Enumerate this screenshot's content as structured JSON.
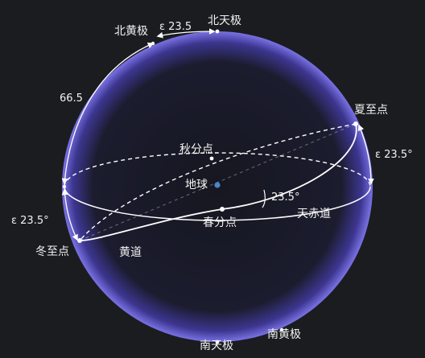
{
  "labels": {
    "north_celestial_pole": "北天极",
    "south_celestial_pole": "南天极",
    "north_ecliptic_pole": "北黄极",
    "south_ecliptic_pole": "南黄极",
    "earth": "地球",
    "summer_solstice": "夏至点",
    "winter_solstice": "冬至点",
    "spring_equinox": "春分点",
    "autumn_equinox": "秋分点",
    "ecliptic": "黄道",
    "celestial_equator": "天赤道"
  },
  "angles": {
    "epsilon_top": "ε 23.5",
    "epsilon_right": "ε 23.5°",
    "epsilon_left": "ε 23.5°",
    "complement": "66.5",
    "obliquity": "23.5°"
  },
  "colors": {
    "background": "#1b1c20",
    "sphere_glow": "#6a5fd6",
    "line": "#ffffff",
    "earth": "#4a86c8"
  }
}
